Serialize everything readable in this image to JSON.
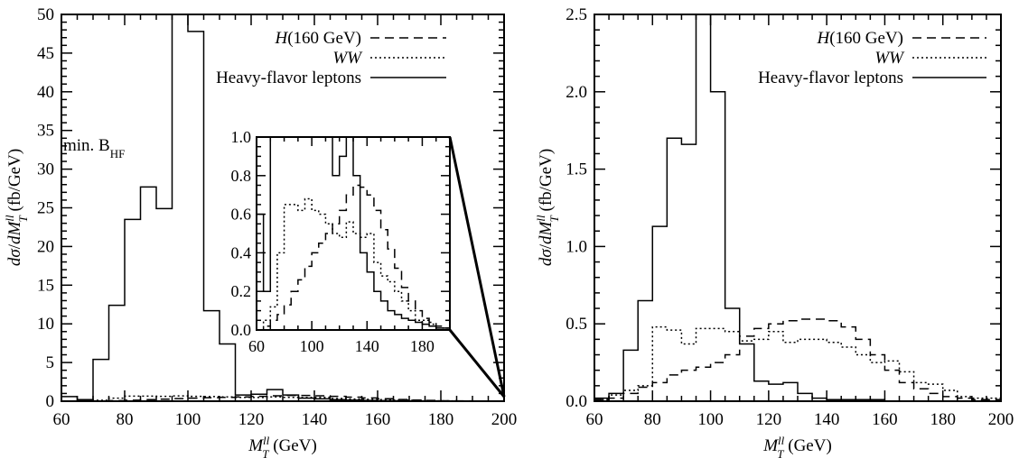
{
  "chart_data": [
    {
      "type": "line",
      "id": "left",
      "ylabel": "dσ/dM_T^{ll} (fb/GeV)",
      "xlabel": "M_T^{ll} (GeV)",
      "xlim": [
        60,
        200
      ],
      "ylim": [
        0,
        50
      ],
      "xticks": [
        60,
        80,
        100,
        120,
        140,
        160,
        180,
        200
      ],
      "yticks": [
        0,
        5,
        10,
        15,
        20,
        25,
        30,
        35,
        40,
        45,
        50
      ],
      "ytick_labels": [
        "0",
        "5",
        "10",
        "15",
        "20",
        "25",
        "30",
        "35",
        "40",
        "45",
        "50"
      ],
      "annotation": "min. B_HF",
      "legend_placement": "top-right",
      "grid": false,
      "bin_edges": [
        60,
        65,
        70,
        75,
        80,
        85,
        90,
        95,
        100,
        105,
        110,
        115,
        120,
        125,
        130,
        135,
        140,
        145,
        150,
        155,
        160,
        165,
        170,
        175,
        180,
        185,
        190,
        195,
        200
      ],
      "series": [
        {
          "name": "H(160 GeV)",
          "style": "dashed",
          "values": [
            0,
            0.02,
            0.05,
            0.08,
            0.13,
            0.2,
            0.26,
            0.33,
            0.4,
            0.45,
            0.5,
            0.55,
            0.62,
            0.7,
            0.75,
            0.74,
            0.7,
            0.62,
            0.52,
            0.42,
            0.32,
            0.22,
            0.15,
            0.1,
            0.06,
            0.04,
            0.02,
            0.01
          ]
        },
        {
          "name": "WW",
          "style": "dotted",
          "values": [
            0,
            0.05,
            0.12,
            0.4,
            0.65,
            0.65,
            0.62,
            0.68,
            0.62,
            0.6,
            0.55,
            0.5,
            0.48,
            0.56,
            0.5,
            0.48,
            0.5,
            0.35,
            0.28,
            0.25,
            0.2,
            0.15,
            0.1,
            0.05,
            0.05,
            0.03,
            0.02,
            0.01
          ]
        },
        {
          "name": "Heavy-flavor leptons",
          "style": "solid",
          "values": [
            0.6,
            0.2,
            5.4,
            12.4,
            23.5,
            27.7,
            24.9,
            50,
            47.8,
            11.7,
            7.4,
            0.8,
            0.9,
            1.5,
            0.8,
            0.4,
            0.3,
            0.2,
            0.15,
            0.1,
            0.08,
            0.06,
            0.05,
            0.04,
            0.03,
            0.02,
            0.01,
            0.01
          ]
        }
      ],
      "inset": {
        "xlim": [
          60,
          200
        ],
        "ylim": [
          0,
          1.0
        ],
        "xticks": [
          60,
          100,
          140,
          180
        ],
        "yticks": [
          0.0,
          0.2,
          0.4,
          0.6,
          0.8,
          1.0
        ],
        "ytick_labels": [
          "0.0",
          "0.2",
          "0.4",
          "0.6",
          "0.8",
          "1.0"
        ]
      }
    },
    {
      "type": "line",
      "id": "right",
      "ylabel": "dσ/dM_T^{ll} (fb/GeV)",
      "xlabel": "M_T^{ll} (GeV)",
      "xlim": [
        60,
        200
      ],
      "ylim": [
        0,
        2.5
      ],
      "xticks": [
        60,
        80,
        100,
        120,
        140,
        160,
        180,
        200
      ],
      "yticks": [
        0,
        0.5,
        1.0,
        1.5,
        2.0,
        2.5
      ],
      "ytick_labels": [
        "0.0",
        "0.5",
        "1.0",
        "1.5",
        "2.0",
        "2.5"
      ],
      "legend_placement": "top-right",
      "grid": false,
      "bin_edges": [
        60,
        65,
        70,
        75,
        80,
        85,
        90,
        95,
        100,
        105,
        110,
        115,
        120,
        125,
        130,
        135,
        140,
        145,
        150,
        155,
        160,
        165,
        170,
        175,
        180,
        185,
        190,
        195,
        200
      ],
      "series": [
        {
          "name": "H(160 GeV)",
          "style": "dashed",
          "values": [
            0.01,
            0.02,
            0.05,
            0.09,
            0.12,
            0.17,
            0.2,
            0.22,
            0.25,
            0.3,
            0.42,
            0.47,
            0.5,
            0.52,
            0.53,
            0.53,
            0.52,
            0.48,
            0.4,
            0.3,
            0.2,
            0.12,
            0.08,
            0.05,
            0.03,
            0.02,
            0.01,
            0.01
          ]
        },
        {
          "name": "WW",
          "style": "dotted",
          "values": [
            0.01,
            0.04,
            0.07,
            0.1,
            0.48,
            0.46,
            0.37,
            0.47,
            0.47,
            0.45,
            0.39,
            0.4,
            0.45,
            0.38,
            0.4,
            0.4,
            0.38,
            0.35,
            0.3,
            0.25,
            0.26,
            0.19,
            0.12,
            0.11,
            0.07,
            0.03,
            0.02,
            0.02
          ]
        },
        {
          "name": "Heavy-flavor leptons",
          "style": "solid",
          "values": [
            0.02,
            0.05,
            0.33,
            0.65,
            1.13,
            1.7,
            1.66,
            2.5,
            2.0,
            0.6,
            0.37,
            0.13,
            0.11,
            0.12,
            0.05,
            0.02,
            0.01,
            0.01,
            0.01,
            0.01,
            0,
            0,
            0,
            0,
            0,
            0,
            0,
            0
          ]
        }
      ]
    }
  ]
}
